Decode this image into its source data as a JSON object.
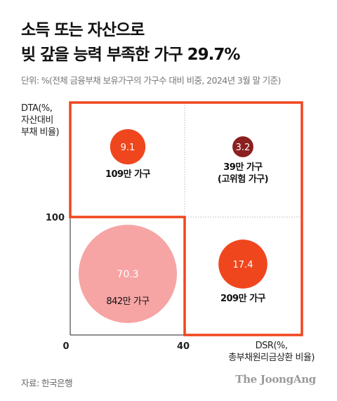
{
  "title_line1": "소득 또는 자산으로",
  "title_line2": "빚 갚을 능력 부족한 가구 29.7%",
  "subtitle": "단위: %(전체 금융부채 보유가구의 가구수 대비 비중, 2024년 3월 말 기준)",
  "ylabel_lines": [
    "DTA(%,",
    "자산대비",
    "부채 비율)"
  ],
  "xlabel_lines": [
    "DSR(%,",
    "총부채원리금상환 비율)"
  ],
  "source": "자료: 한국은행",
  "logo": "The JoongAng",
  "colors": {
    "accent": "#f0461e",
    "bubble_orange": "#f0461e",
    "bubble_darkred": "#8c1f1f",
    "bubble_pink": "#f7a4a4",
    "axis": "#222222",
    "grid": "#bbbbbb"
  },
  "chart_data": {
    "type": "bubble",
    "x_ticks": [
      "0",
      "40"
    ],
    "y_ticks": [
      "100"
    ],
    "highlight": "vulnerable households (DSR over 40 or DTA over 100)",
    "points": [
      {
        "value": 70.3,
        "label": "70.3",
        "caption": "842만 가구",
        "dsr": "0-40",
        "dta": "0-100",
        "color": "#f7a4a4"
      },
      {
        "value": 9.1,
        "label": "9.1",
        "caption": "109만 가구",
        "dsr": "0-40",
        "dta": "over 100",
        "color": "#f0461e"
      },
      {
        "value": 3.2,
        "label": "3.2",
        "caption": "39만 가구\n(고위험 가구)",
        "dsr": "over 40",
        "dta": "over 100",
        "color": "#8c1f1f"
      },
      {
        "value": 17.4,
        "label": "17.4",
        "caption": "209만 가구",
        "dsr": "over 40",
        "dta": "0-100",
        "color": "#f0461e"
      }
    ]
  }
}
